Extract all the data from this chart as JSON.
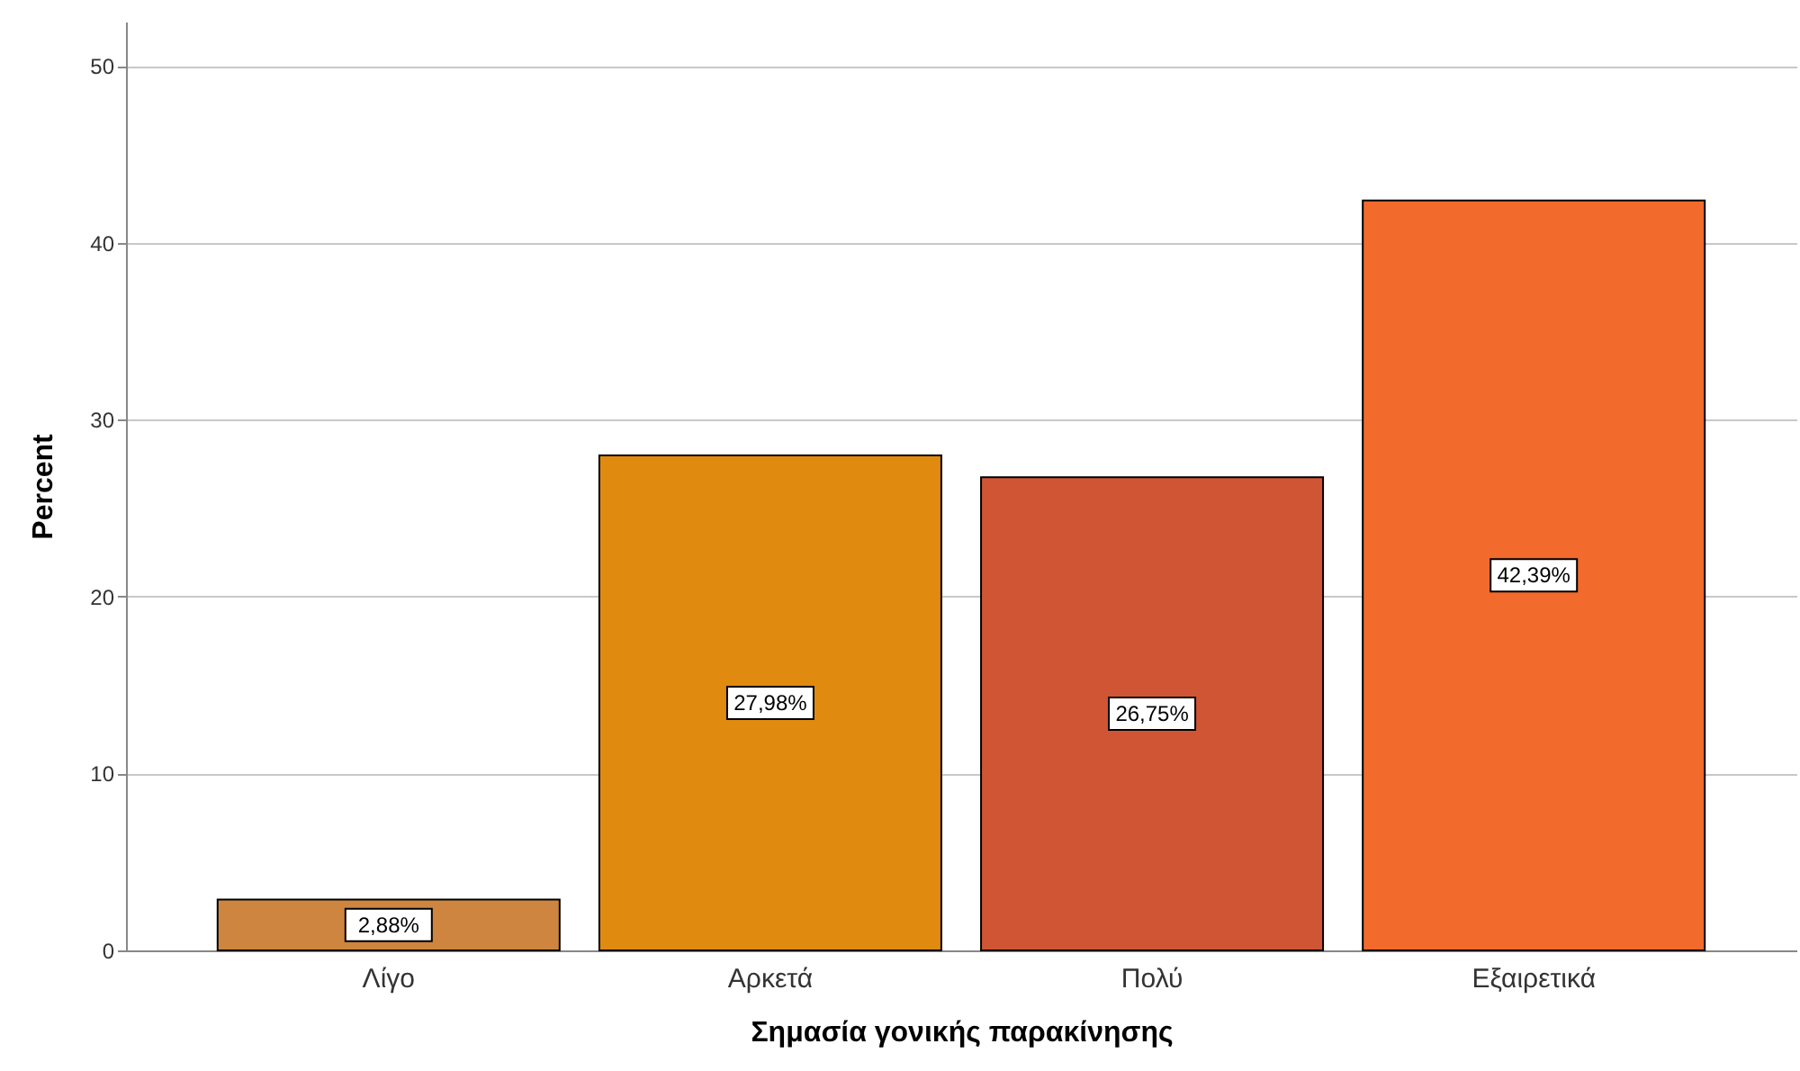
{
  "chart_data": {
    "type": "bar",
    "xlabel": "Σημασία γονικής παρακίνησης",
    "ylabel": "Percent",
    "categories": [
      "Λίγο",
      "Αρκετά",
      "Πολύ",
      "Εξαιρετικά"
    ],
    "values": [
      2.88,
      27.98,
      26.75,
      42.39
    ],
    "colors": [
      "#cd8540",
      "#e08a10",
      "#d05535",
      "#f26a2c"
    ],
    "value_labels": [
      "2,88%",
      "27,98%",
      "26,75%",
      "42,39%"
    ],
    "ylim": [
      0,
      52.5
    ],
    "yticks": [
      0,
      10,
      20,
      30,
      40,
      50
    ],
    "grid": "y"
  }
}
